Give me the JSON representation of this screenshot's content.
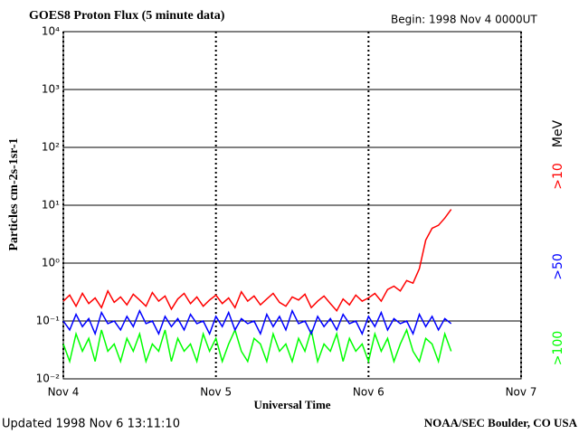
{
  "chart_data": {
    "type": "line",
    "title": "GOES8 Proton Flux (5 minute data)",
    "begin": "Begin: 1998 Nov 4 0000UT",
    "ylabel": "Particles cm-2s-1sr-1",
    "xlabel": "Universal Time",
    "updated": "Updated 1998 Nov  6 13:11:10",
    "credit": "NOAA/SEC Boulder, CO USA",
    "legend_unit": "MeV",
    "log_y": true,
    "grid": true,
    "xlim": [
      0,
      72
    ],
    "xticks": [
      {
        "value": 0,
        "label": "Nov 4"
      },
      {
        "value": 24,
        "label": "Nov 5"
      },
      {
        "value": 48,
        "label": "Nov 6"
      },
      {
        "value": 72,
        "label": "Nov 7"
      }
    ],
    "ylim": [
      0.01,
      10000
    ],
    "yticks": [
      {
        "value": 0.01,
        "label": "10⁻²"
      },
      {
        "value": 0.1,
        "label": "10⁻¹"
      },
      {
        "value": 1,
        "label": "10⁰"
      },
      {
        "value": 10,
        "label": "10¹"
      },
      {
        "value": 100,
        "label": "10²"
      },
      {
        "value": 1000,
        "label": "10³"
      },
      {
        "value": 10000,
        "label": "10⁴"
      }
    ],
    "x": [
      0,
      1,
      2,
      3,
      4,
      5,
      6,
      7,
      8,
      9,
      10,
      11,
      12,
      13,
      14,
      15,
      16,
      17,
      18,
      19,
      20,
      21,
      22,
      23,
      24,
      25,
      26,
      27,
      28,
      29,
      30,
      31,
      32,
      33,
      34,
      35,
      36,
      37,
      38,
      39,
      40,
      41,
      42,
      43,
      44,
      45,
      46,
      47,
      48,
      49,
      50,
      51,
      52,
      53,
      54,
      55,
      56,
      57,
      58,
      59,
      60,
      61
    ],
    "series": [
      {
        "name": ">100",
        "color": "#00ff00",
        "values": [
          0.04,
          0.02,
          0.06,
          0.03,
          0.05,
          0.02,
          0.07,
          0.03,
          0.04,
          0.02,
          0.05,
          0.03,
          0.06,
          0.02,
          0.04,
          0.03,
          0.07,
          0.02,
          0.05,
          0.03,
          0.04,
          0.02,
          0.06,
          0.03,
          0.05,
          0.02,
          0.04,
          0.07,
          0.03,
          0.02,
          0.05,
          0.04,
          0.02,
          0.06,
          0.03,
          0.04,
          0.02,
          0.05,
          0.03,
          0.07,
          0.02,
          0.04,
          0.03,
          0.06,
          0.02,
          0.05,
          0.03,
          0.04,
          0.02,
          0.06,
          0.03,
          0.05,
          0.02,
          0.04,
          0.07,
          0.03,
          0.02,
          0.05,
          0.04,
          0.02,
          0.06,
          0.03
        ]
      },
      {
        "name": ">50",
        "color": "#0000ff",
        "values": [
          0.1,
          0.07,
          0.13,
          0.08,
          0.11,
          0.06,
          0.14,
          0.09,
          0.1,
          0.07,
          0.12,
          0.08,
          0.15,
          0.09,
          0.1,
          0.06,
          0.12,
          0.08,
          0.11,
          0.07,
          0.13,
          0.09,
          0.1,
          0.06,
          0.12,
          0.08,
          0.14,
          0.07,
          0.11,
          0.09,
          0.1,
          0.06,
          0.13,
          0.08,
          0.12,
          0.07,
          0.15,
          0.09,
          0.1,
          0.06,
          0.12,
          0.08,
          0.11,
          0.07,
          0.13,
          0.09,
          0.1,
          0.06,
          0.12,
          0.08,
          0.14,
          0.07,
          0.11,
          0.09,
          0.1,
          0.06,
          0.13,
          0.08,
          0.12,
          0.07,
          0.11,
          0.09
        ]
      },
      {
        "name": ">10",
        "color": "#ff0000",
        "values": [
          0.22,
          0.28,
          0.18,
          0.3,
          0.2,
          0.25,
          0.17,
          0.33,
          0.21,
          0.26,
          0.19,
          0.29,
          0.23,
          0.18,
          0.31,
          0.22,
          0.27,
          0.16,
          0.24,
          0.3,
          0.2,
          0.26,
          0.18,
          0.23,
          0.28,
          0.2,
          0.25,
          0.17,
          0.32,
          0.22,
          0.27,
          0.19,
          0.24,
          0.3,
          0.21,
          0.18,
          0.26,
          0.23,
          0.29,
          0.17,
          0.22,
          0.27,
          0.2,
          0.15,
          0.24,
          0.19,
          0.28,
          0.22,
          0.25,
          0.3,
          0.22,
          0.35,
          0.4,
          0.33,
          0.5,
          0.45,
          0.8,
          2.5,
          4,
          4.5,
          6,
          8.5
        ]
      }
    ]
  }
}
